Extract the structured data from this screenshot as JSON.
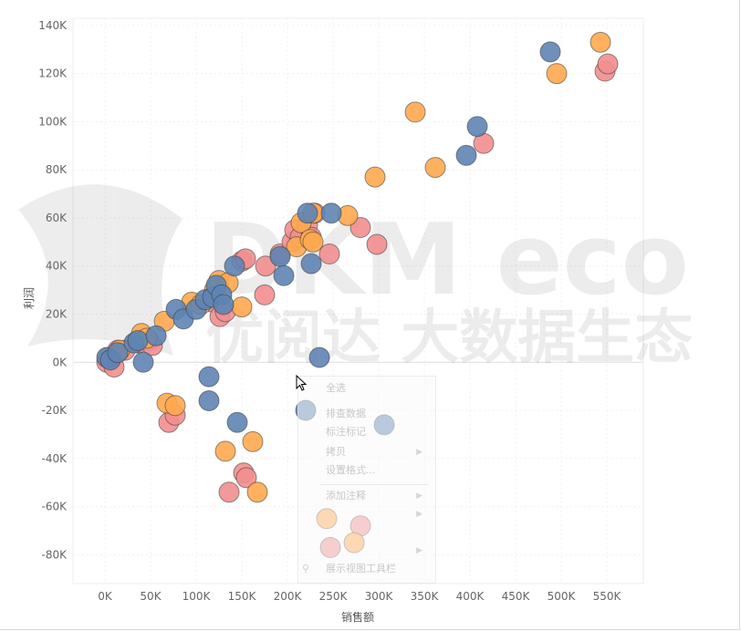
{
  "chart_data": {
    "type": "scatter",
    "xlabel": "销售额",
    "ylabel": "利润",
    "xlim": [
      -35000,
      590000
    ],
    "ylim": [
      -92000,
      143000
    ],
    "xticks": [
      0,
      50000,
      100000,
      150000,
      200000,
      250000,
      300000,
      350000,
      400000,
      450000,
      500000,
      550000
    ],
    "xtick_labels": [
      "0K",
      "50K",
      "100K",
      "150K",
      "200K",
      "250K",
      "300K",
      "350K",
      "400K",
      "450K",
      "500K",
      "550K"
    ],
    "yticks": [
      140000,
      120000,
      100000,
      80000,
      60000,
      40000,
      20000,
      0,
      -20000,
      -40000,
      -60000,
      -80000
    ],
    "ytick_labels": [
      "140K",
      "120K",
      "100K",
      "80K",
      "60K",
      "40K",
      "20K",
      "0K",
      "-20K",
      "-40K",
      "-60K",
      "-80K"
    ],
    "grid": true,
    "legend": "none",
    "series": [
      {
        "color": "#f28e8e",
        "points": [
          [
            2000,
            0
          ],
          [
            8000,
            2000
          ],
          [
            14000,
            5000
          ],
          [
            10000,
            -2000
          ],
          [
            22000,
            5000
          ],
          [
            36000,
            8000
          ],
          [
            48000,
            9000
          ],
          [
            52000,
            7000
          ],
          [
            70000,
            -25000
          ],
          [
            77000,
            -22000
          ],
          [
            118000,
            25000
          ],
          [
            126000,
            19000
          ],
          [
            132000,
            21000
          ],
          [
            150000,
            42000
          ],
          [
            154000,
            43000
          ],
          [
            136000,
            -54000
          ],
          [
            152000,
            -46000
          ],
          [
            155000,
            -48000
          ],
          [
            176000,
            40000
          ],
          [
            175000,
            28000
          ],
          [
            192000,
            45000
          ],
          [
            205000,
            50000
          ],
          [
            208000,
            55000
          ],
          [
            214000,
            52000
          ],
          [
            222000,
            57000
          ],
          [
            226000,
            52000
          ],
          [
            230000,
            62000
          ],
          [
            246000,
            45000
          ],
          [
            280000,
            56000
          ],
          [
            298000,
            49000
          ],
          [
            247000,
            -77000
          ],
          [
            280000,
            -68000
          ],
          [
            415000,
            91000
          ],
          [
            548000,
            121000
          ],
          [
            551000,
            124000
          ]
        ]
      },
      {
        "color": "#ffa94f",
        "points": [
          [
            4000,
            2000
          ],
          [
            16000,
            5000
          ],
          [
            40000,
            12000
          ],
          [
            46000,
            10000
          ],
          [
            65000,
            17000
          ],
          [
            68000,
            -17000
          ],
          [
            77000,
            -18000
          ],
          [
            95000,
            25000
          ],
          [
            105000,
            24000
          ],
          [
            120000,
            30000
          ],
          [
            125000,
            34000
          ],
          [
            135000,
            33000
          ],
          [
            150000,
            23000
          ],
          [
            132000,
            -37000
          ],
          [
            162000,
            -33000
          ],
          [
            167000,
            -54000
          ],
          [
            210000,
            48000
          ],
          [
            215000,
            58000
          ],
          [
            225000,
            51000
          ],
          [
            228000,
            50000
          ],
          [
            228000,
            62000
          ],
          [
            266000,
            61000
          ],
          [
            243000,
            -65000
          ],
          [
            273000,
            -75000
          ],
          [
            296000,
            77000
          ],
          [
            340000,
            104000
          ],
          [
            362000,
            81000
          ],
          [
            495000,
            120000
          ],
          [
            543000,
            133000
          ]
        ]
      },
      {
        "color": "#5e84b4",
        "points": [
          [
            2000,
            2000
          ],
          [
            6000,
            1000
          ],
          [
            14000,
            4000
          ],
          [
            32000,
            8000
          ],
          [
            36000,
            9000
          ],
          [
            42000,
            0
          ],
          [
            56000,
            11000
          ],
          [
            78000,
            22000
          ],
          [
            86000,
            18000
          ],
          [
            100000,
            22000
          ],
          [
            110000,
            26000
          ],
          [
            118000,
            27000
          ],
          [
            122000,
            32000
          ],
          [
            128000,
            28000
          ],
          [
            130000,
            24000
          ],
          [
            142000,
            40000
          ],
          [
            114000,
            -6000
          ],
          [
            114000,
            -16000
          ],
          [
            145000,
            -25000
          ],
          [
            192000,
            44000
          ],
          [
            196000,
            36000
          ],
          [
            222000,
            62000
          ],
          [
            226000,
            41000
          ],
          [
            248000,
            62000
          ],
          [
            235000,
            2000
          ],
          [
            220000,
            -20000
          ],
          [
            306000,
            -26000
          ],
          [
            396000,
            86000
          ],
          [
            408000,
            98000
          ],
          [
            488000,
            129000
          ]
        ]
      }
    ]
  },
  "context_menu": {
    "items": [
      "全选",
      "排查数据",
      "标注标记",
      "拷贝",
      "设置格式...",
      "添加注释",
      "展示视图工具栏"
    ]
  },
  "watermark": {
    "brand": "DKM eco",
    "caption": "优阅达 大数据生态"
  }
}
